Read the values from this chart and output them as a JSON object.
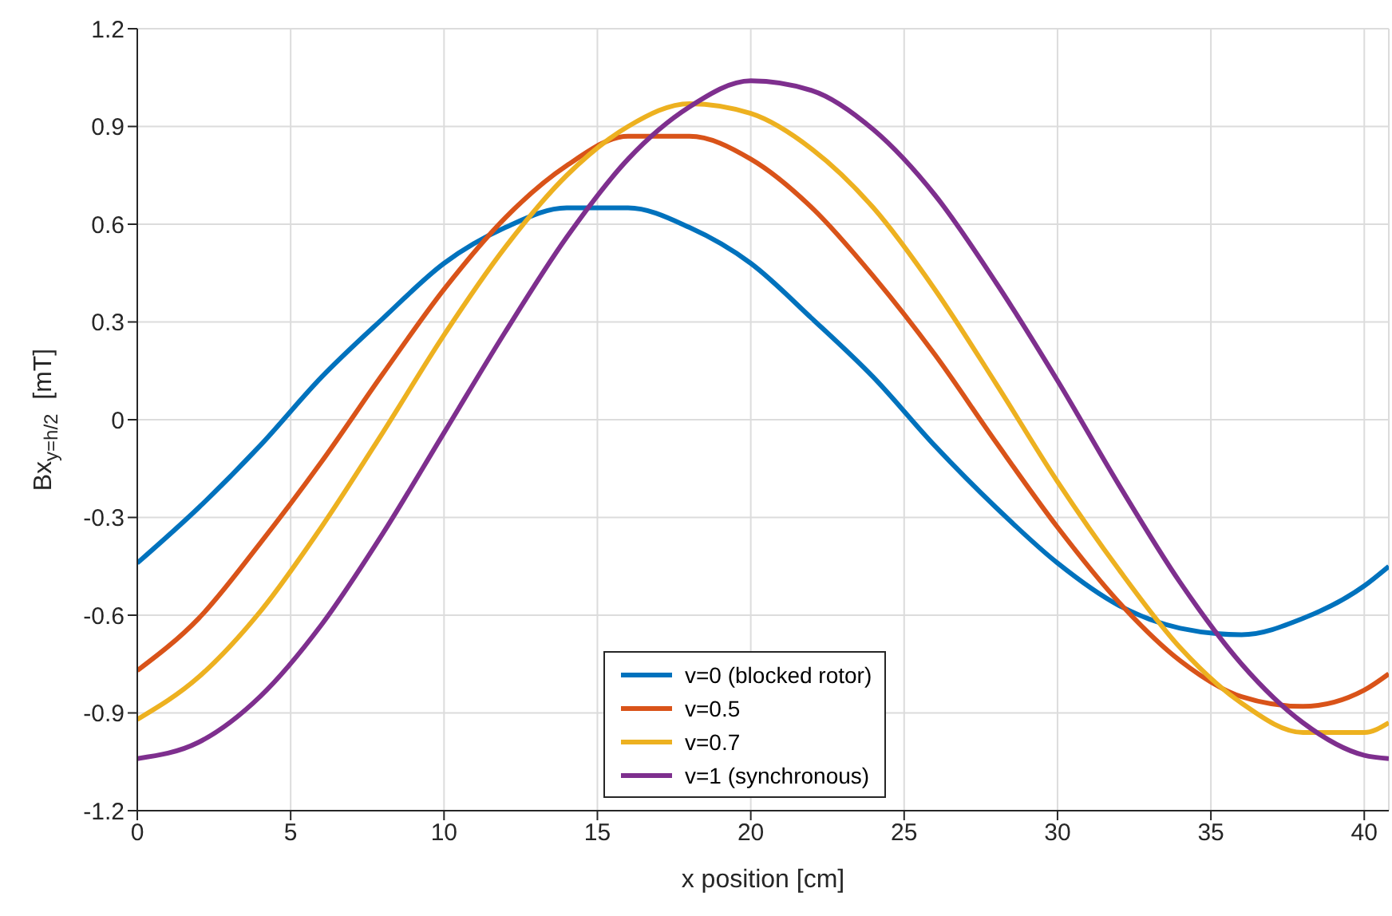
{
  "chart_data": {
    "type": "line",
    "xlabel": "x position [cm]",
    "ylabel": "Bx$_{y=h/2}$  [mT]",
    "x": [
      0,
      2,
      4,
      6,
      8,
      10,
      12,
      14,
      16,
      18,
      20,
      22,
      24,
      26,
      28,
      30,
      32,
      34,
      36,
      38,
      40,
      40.8
    ],
    "series": [
      {
        "name": "v=0 (blocked rotor)",
        "color": "#0072bd",
        "values": [
          -0.44,
          -0.27,
          -0.08,
          0.13,
          0.31,
          0.48,
          0.59,
          0.65,
          0.65,
          0.59,
          0.48,
          0.31,
          0.13,
          -0.08,
          -0.27,
          -0.44,
          -0.57,
          -0.64,
          -0.66,
          -0.61,
          -0.51,
          -0.45
        ]
      },
      {
        "name": "v=0.5",
        "color": "#d95319",
        "values": [
          -0.77,
          -0.61,
          -0.38,
          -0.13,
          0.14,
          0.4,
          0.62,
          0.78,
          0.87,
          0.87,
          0.8,
          0.65,
          0.44,
          0.2,
          -0.07,
          -0.33,
          -0.56,
          -0.74,
          -0.85,
          -0.88,
          -0.83,
          -0.78
        ]
      },
      {
        "name": "v=0.7",
        "color": "#edb120",
        "values": [
          -0.92,
          -0.79,
          -0.59,
          -0.33,
          -0.04,
          0.26,
          0.53,
          0.75,
          0.9,
          0.97,
          0.94,
          0.83,
          0.65,
          0.4,
          0.11,
          -0.19,
          -0.46,
          -0.7,
          -0.87,
          -0.96,
          -0.96,
          -0.93
        ]
      },
      {
        "name": "v=1 (synchronous)",
        "color": "#7e2f8e",
        "values": [
          -1.04,
          -0.99,
          -0.85,
          -0.63,
          -0.35,
          -0.04,
          0.27,
          0.56,
          0.8,
          0.96,
          1.04,
          1.01,
          0.89,
          0.69,
          0.42,
          0.12,
          -0.2,
          -0.5,
          -0.75,
          -0.93,
          -1.03,
          -1.04
        ]
      }
    ],
    "xlim": [
      0,
      40.8
    ],
    "xticks": [
      0,
      5,
      10,
      15,
      20,
      25,
      30,
      35,
      40
    ],
    "ylim": [
      -1.2,
      1.2
    ],
    "yticks": [
      -1.2,
      -0.9,
      -0.6,
      -0.3,
      0,
      0.3,
      0.6,
      0.9,
      1.2
    ],
    "grid": true,
    "legend": "bottom",
    "marker": "none",
    "line_style": "solid"
  }
}
